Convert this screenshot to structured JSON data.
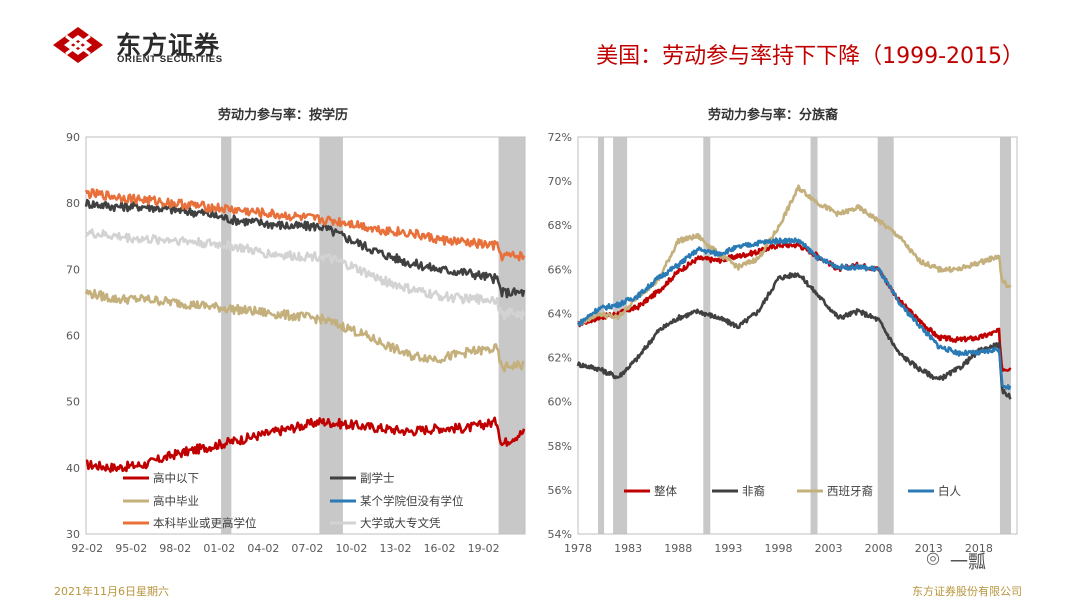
{
  "header": {
    "logo_cn": "东方证券",
    "logo_en": "ORIENT SECURITIES",
    "slide_title": "美国：劳动参与率持下下降（1999-2015）",
    "brand_color": "#c00000"
  },
  "footer": {
    "date": "2021年11月6日星期六",
    "company": "东方证券股份有限公司",
    "watermark": "一瓢"
  },
  "chart_data": [
    {
      "type": "line",
      "title": "劳动力参与率：按学历",
      "x_ticks": [
        "92-02",
        "95-02",
        "98-02",
        "01-02",
        "04-02",
        "07-02",
        "10-02",
        "13-02",
        "16-02",
        "19-02"
      ],
      "x_range": [
        1992.0,
        2021.9
      ],
      "ylim": [
        30,
        90
      ],
      "y_ticks": [
        30,
        40,
        50,
        60,
        70,
        80,
        90
      ],
      "recessions": [
        [
          2001.2,
          2001.9
        ],
        [
          2007.9,
          2009.5
        ],
        [
          2020.1,
          2021.9
        ]
      ],
      "series": [
        {
          "name": "高中以下",
          "color": "#c00000",
          "x": [
            1992,
            1994,
            1996,
            1998,
            2000,
            2002,
            2004,
            2006,
            2008,
            2010,
            2012,
            2014,
            2016,
            2018,
            2020,
            2020.3,
            2021,
            2021.9
          ],
          "y": [
            40.5,
            40,
            40.5,
            42,
            43,
            44,
            45,
            46,
            47,
            46.5,
            46,
            45.5,
            46,
            46,
            47,
            43.5,
            44.5,
            45.5
          ]
        },
        {
          "name": "副学士",
          "color": "#404040",
          "x": [
            1992,
            1994,
            1996,
            1998,
            2000,
            2002,
            2004,
            2006,
            2008,
            2010,
            2012,
            2014,
            2016,
            2018,
            2020,
            2020.3,
            2021,
            2021.9
          ],
          "y": [
            80,
            79.5,
            79.5,
            79,
            78.5,
            77.5,
            77,
            76.5,
            76.5,
            74.5,
            72.5,
            71,
            70,
            69.5,
            68.5,
            66.5,
            66.5,
            66.5
          ]
        },
        {
          "name": "高中毕业",
          "color": "#c4b07c",
          "x": [
            1992,
            1994,
            1996,
            1998,
            2000,
            2002,
            2004,
            2006,
            2008,
            2010,
            2012,
            2014,
            2016,
            2018,
            2020,
            2020.3,
            2021,
            2021.9
          ],
          "y": [
            66.5,
            65.5,
            65.5,
            65,
            64.5,
            64,
            63.5,
            63,
            62.5,
            61,
            59,
            57,
            56.5,
            57.5,
            58,
            55,
            55.5,
            55.5
          ]
        },
        {
          "name": "某个学院但没有学位",
          "color": "#2a7ab5",
          "x": [],
          "y": []
        },
        {
          "name": "本科毕业或更高学位",
          "color": "#e8703a",
          "x": [
            1992,
            1994,
            1996,
            1998,
            2000,
            2002,
            2004,
            2006,
            2008,
            2010,
            2012,
            2014,
            2016,
            2018,
            2020,
            2020.3,
            2021,
            2021.9
          ],
          "y": [
            81.5,
            81,
            80.5,
            80,
            79.5,
            79,
            78.5,
            78,
            77.5,
            77,
            76,
            75.5,
            74.5,
            74,
            73.5,
            72,
            72,
            72
          ]
        },
        {
          "name": "大学或大专文凭",
          "color": "#d3d3d3",
          "x": [
            1992,
            1994,
            1996,
            1998,
            2000,
            2002,
            2004,
            2006,
            2008,
            2010,
            2012,
            2014,
            2016,
            2018,
            2020,
            2020.3,
            2021,
            2021.9
          ],
          "y": [
            75.5,
            75,
            74.5,
            74.5,
            74,
            73.5,
            72.5,
            72,
            72,
            70.5,
            68.5,
            67,
            66,
            65.5,
            65.5,
            63,
            63.5,
            63
          ]
        }
      ],
      "legend": [
        "高中以下",
        "副学士",
        "高中毕业",
        "某个学院但没有学位",
        "本科毕业或更高学位",
        "大学或大专文凭"
      ]
    },
    {
      "type": "line",
      "title": "劳动力参与率：分族裔",
      "x_ticks": [
        "1978",
        "1983",
        "1988",
        "1993",
        "1998",
        "2003",
        "2008",
        "2013",
        "2018"
      ],
      "x_range": [
        1978.0,
        2021.8
      ],
      "ylim": [
        54,
        72
      ],
      "y_ticks": [
        "54%",
        "56%",
        "58%",
        "60%",
        "62%",
        "64%",
        "66%",
        "68%",
        "70%",
        "72%"
      ],
      "recessions": [
        [
          1980.0,
          1980.6
        ],
        [
          1981.5,
          1982.9
        ],
        [
          1990.5,
          1991.2
        ],
        [
          2001.2,
          2001.9
        ],
        [
          2007.9,
          2009.5
        ],
        [
          2020.1,
          2021.2
        ]
      ],
      "series": [
        {
          "name": "整体",
          "color": "#c00000",
          "x": [
            1978,
            1980,
            1982,
            1984,
            1986,
            1988,
            1990,
            1992,
            1994,
            1996,
            1998,
            2000,
            2002,
            2004,
            2006,
            2008,
            2010,
            2012,
            2014,
            2016,
            2018,
            2020,
            2020.3,
            2021.2
          ],
          "y": [
            63.5,
            63.8,
            64,
            64.3,
            65,
            65.9,
            66.5,
            66.4,
            66.6,
            66.8,
            67.1,
            67.1,
            66.6,
            66,
            66.2,
            66,
            64.6,
            63.7,
            62.9,
            62.8,
            62.9,
            63.2,
            61.5,
            61.5
          ]
        },
        {
          "name": "非裔",
          "color": "#404040",
          "x": [
            1978,
            1980,
            1982,
            1984,
            1986,
            1988,
            1990,
            1992,
            1994,
            1996,
            1998,
            2000,
            2002,
            2004,
            2006,
            2008,
            2010,
            2012,
            2014,
            2016,
            2018,
            2020,
            2020.3,
            2021.2
          ],
          "y": [
            61.7,
            61.5,
            61.1,
            62,
            63.2,
            63.8,
            64.1,
            63.8,
            63.4,
            64.1,
            65.6,
            65.8,
            64.8,
            63.8,
            64.1,
            63.7,
            62.2,
            61.5,
            61,
            61.5,
            62.3,
            62.6,
            60.5,
            60.2
          ]
        },
        {
          "name": "西班牙裔",
          "color": "#c4b07c",
          "x": [
            1978,
            1980,
            1982,
            1984,
            1986,
            1988,
            1990,
            1992,
            1994,
            1996,
            1998,
            2000,
            2002,
            2004,
            2006,
            2008,
            2010,
            2012,
            2014,
            2016,
            2018,
            2020,
            2020.3,
            2021.2
          ],
          "y": [
            63.5,
            64,
            63.8,
            64.8,
            65.5,
            67.3,
            67.5,
            66.7,
            66.1,
            66.5,
            67.9,
            69.7,
            69,
            68.5,
            68.8,
            68.2,
            67.5,
            66.4,
            66,
            66,
            66.3,
            66.6,
            65.5,
            65.1
          ]
        },
        {
          "name": "白人",
          "color": "#2a7ab5",
          "x": [
            1978,
            1980,
            1982,
            1984,
            1986,
            1988,
            1990,
            1992,
            1994,
            1996,
            1998,
            2000,
            2002,
            2004,
            2006,
            2008,
            2010,
            2012,
            2014,
            2016,
            2018,
            2020,
            2020.3,
            2021.2
          ],
          "y": [
            63.5,
            64.2,
            64.4,
            64.8,
            65.6,
            66.2,
            66.9,
            66.7,
            67,
            67.2,
            67.3,
            67.3,
            66.5,
            66.1,
            66.1,
            66,
            64.5,
            63.5,
            62.5,
            62.2,
            62.2,
            62.4,
            60.8,
            60.6
          ]
        }
      ],
      "legend": [
        "整体",
        "非裔",
        "西班牙裔",
        "白人"
      ]
    }
  ]
}
